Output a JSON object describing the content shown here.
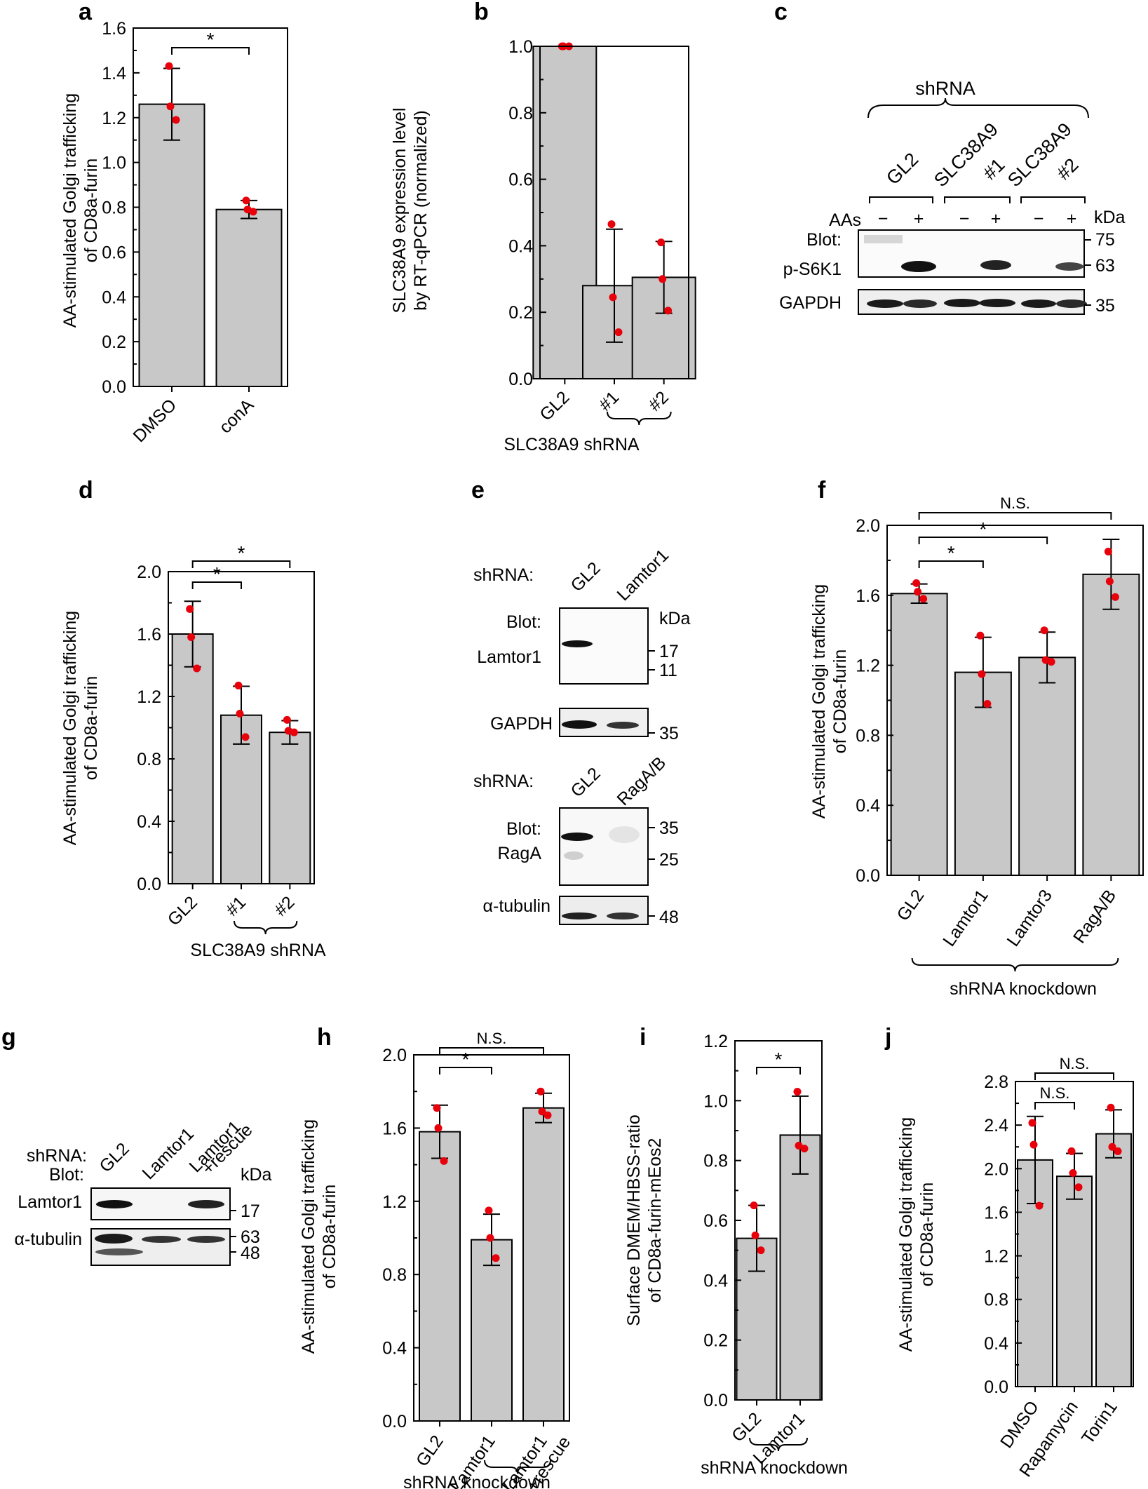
{
  "figure": {
    "background": "#ffffff",
    "bar_color": "#c8c8c8",
    "dot_color": "#e8000b"
  },
  "chart_data": [
    {
      "id": "a",
      "type": "bar",
      "panel_letter": "a",
      "categories": [
        "DMSO",
        "conA"
      ],
      "values": [
        1.26,
        0.79
      ],
      "errors": [
        0.16,
        0.04
      ],
      "points": [
        [
          1.43,
          1.25,
          1.19
        ],
        [
          0.83,
          0.79,
          0.78
        ]
      ],
      "ylabel": [
        "AA-stimulated Golgi trafficking",
        "of CD8a-furin"
      ],
      "ylim": [
        0,
        1.6
      ],
      "yticks": [
        0.0,
        0.2,
        0.4,
        0.6,
        0.8,
        1.0,
        1.2,
        1.4,
        1.6
      ],
      "ytick_labels": [
        "0.0",
        "0.2",
        "0.4",
        "0.6",
        "0.8",
        "1.0",
        "1.2",
        "1.4",
        "1.6"
      ],
      "brackets": [
        {
          "from": 0,
          "to": 1,
          "label": "*",
          "level": 0
        }
      ],
      "group_bracket": null
    },
    {
      "id": "b",
      "type": "bar",
      "panel_letter": "b",
      "categories": [
        "GL2",
        "#1",
        "#2"
      ],
      "values": [
        1.0,
        0.28,
        0.305
      ],
      "errors": [
        0.0,
        0.17,
        0.108
      ],
      "points": [
        [
          1.0,
          1.0,
          1.0
        ],
        [
          0.465,
          0.245,
          0.14
        ],
        [
          0.41,
          0.3,
          0.205
        ]
      ],
      "ylabel": [
        "SLC38A9 expression level",
        "by RT-qPCR (normalized)"
      ],
      "ylim": [
        0,
        1.0
      ],
      "yticks": [
        0.0,
        0.2,
        0.4,
        0.6,
        0.8,
        1.0
      ],
      "ytick_labels": [
        "0.0",
        "0.2",
        "0.4",
        "0.6",
        "0.8",
        "1.0"
      ],
      "brackets": [],
      "group_bracket": {
        "from": 1,
        "to": 2,
        "label": "SLC38A9 shRNA"
      }
    },
    {
      "id": "d",
      "type": "bar",
      "panel_letter": "d",
      "categories": [
        "GL2",
        "#1",
        "#2"
      ],
      "values": [
        1.6,
        1.08,
        0.97
      ],
      "errors": [
        0.21,
        0.185,
        0.075
      ],
      "points": [
        [
          1.76,
          1.58,
          1.38
        ],
        [
          1.27,
          1.09,
          0.94
        ],
        [
          1.05,
          0.98,
          0.97
        ]
      ],
      "ylabel": [
        "AA-stimulated Golgi trafficking",
        "of CD8a-furin"
      ],
      "ylim": [
        0,
        2.0
      ],
      "yticks": [
        0.0,
        0.4,
        0.8,
        1.2,
        1.6,
        2.0
      ],
      "ytick_labels": [
        "0.0",
        "0.4",
        "0.8",
        "1.2",
        "1.6",
        "2.0"
      ],
      "brackets": [
        {
          "from": 0,
          "to": 1,
          "label": "*",
          "level": 0
        },
        {
          "from": 0,
          "to": 2,
          "label": "*",
          "level": 1
        }
      ],
      "group_bracket": {
        "from": 1,
        "to": 2,
        "label": "SLC38A9 shRNA"
      }
    },
    {
      "id": "f",
      "type": "bar",
      "panel_letter": "f",
      "categories": [
        "GL2",
        "Lamtor1",
        "Lamtor3",
        "RagA/B"
      ],
      "values": [
        1.61,
        1.16,
        1.245,
        1.72
      ],
      "errors": [
        0.055,
        0.2,
        0.145,
        0.2
      ],
      "points": [
        [
          1.67,
          1.62,
          1.58
        ],
        [
          1.37,
          1.15,
          0.98
        ],
        [
          1.4,
          1.23,
          1.22
        ],
        [
          1.85,
          1.68,
          1.59
        ]
      ],
      "ylabel": [
        "AA-stimulated Golgi trafficking",
        "of CD8a-furin"
      ],
      "ylim": [
        0,
        2.0
      ],
      "yticks": [
        0.0,
        0.4,
        0.8,
        1.2,
        1.6,
        2.0
      ],
      "ytick_labels": [
        "0.0",
        "0.4",
        "0.8",
        "1.2",
        "1.6",
        "2.0"
      ],
      "brackets": [
        {
          "from": 0,
          "to": 1,
          "label": "*",
          "level": 0
        },
        {
          "from": 0,
          "to": 2,
          "label": "*",
          "level": 1
        },
        {
          "from": 0,
          "to": 3,
          "label": "N.S.",
          "level": 2
        }
      ],
      "group_bracket": {
        "from": 0,
        "to": 3,
        "label": "shRNA knockdown"
      }
    },
    {
      "id": "h",
      "type": "bar",
      "panel_letter": "h",
      "categories": [
        "GL2",
        "Lamtor1",
        "Lamtor1\n+rescue"
      ],
      "values": [
        1.58,
        0.99,
        1.71
      ],
      "errors": [
        0.145,
        0.14,
        0.08
      ],
      "points": [
        [
          1.71,
          1.6,
          1.42
        ],
        [
          1.15,
          1.0,
          0.89
        ],
        [
          1.8,
          1.69,
          1.67
        ]
      ],
      "ylabel": [
        "AA-stimulated Golgi trafficking",
        "of CD8a-furin"
      ],
      "ylim": [
        0,
        2.0
      ],
      "yticks": [
        0.0,
        0.4,
        0.8,
        1.2,
        1.6,
        2.0
      ],
      "ytick_labels": [
        "0.0",
        "0.4",
        "0.8",
        "1.2",
        "1.6",
        "2.0"
      ],
      "brackets": [
        {
          "from": 0,
          "to": 1,
          "label": "*",
          "level": 0
        },
        {
          "from": 0,
          "to": 2,
          "label": "N.S.",
          "level": 1
        }
      ],
      "group_bracket": {
        "from": 1,
        "to": 2,
        "label": "shRNA knockdown"
      }
    },
    {
      "id": "i",
      "type": "bar",
      "panel_letter": "i",
      "categories": [
        "GL2",
        "Lamtor1"
      ],
      "values": [
        0.54,
        0.885
      ],
      "errors": [
        0.11,
        0.13
      ],
      "points": [
        [
          0.65,
          0.55,
          0.5
        ],
        [
          1.03,
          0.85,
          0.84
        ]
      ],
      "ylabel": [
        "Surface DMEM/HBSS-ratio",
        "of CD8a-furin-mEos2"
      ],
      "ylim": [
        0,
        1.2
      ],
      "yticks": [
        0.0,
        0.2,
        0.4,
        0.6,
        0.8,
        1.0,
        1.2
      ],
      "ytick_labels": [
        "0.0",
        "0.2",
        "0.4",
        "0.6",
        "0.8",
        "1.0",
        "1.2"
      ],
      "brackets": [
        {
          "from": 0,
          "to": 1,
          "label": "*",
          "level": 0
        }
      ],
      "group_bracket": {
        "from": 0,
        "to": 1,
        "label": "shRNA knockdown"
      }
    },
    {
      "id": "j",
      "type": "bar",
      "panel_letter": "j",
      "categories": [
        "DMSO",
        "Rapamycin",
        "Torin1"
      ],
      "values": [
        2.08,
        1.93,
        2.32
      ],
      "errors": [
        0.4,
        0.21,
        0.22
      ],
      "points": [
        [
          2.42,
          2.22,
          1.66
        ],
        [
          2.16,
          1.96,
          1.83
        ],
        [
          2.56,
          2.2,
          2.16
        ]
      ],
      "ylabel": [
        "AA-stimulated Golgi trafficking",
        "of CD8a-furin"
      ],
      "ylim": [
        0,
        2.8
      ],
      "yticks": [
        0.0,
        0.4,
        0.8,
        1.2,
        1.6,
        2.0,
        2.4,
        2.8
      ],
      "ytick_labels": [
        "0.0",
        "0.4",
        "0.8",
        "1.2",
        "1.6",
        "2.0",
        "2.4",
        "2.8"
      ],
      "brackets": [
        {
          "from": 0,
          "to": 1,
          "label": "N.S.",
          "level": 0
        },
        {
          "from": 0,
          "to": 2,
          "label": "N.S.",
          "level": 1
        }
      ],
      "group_bracket": null
    }
  ],
  "blots": {
    "c": {
      "letter": "c",
      "header": "shRNA",
      "groups": [
        "GL2",
        "SLC38A9",
        "#1",
        "SLC38A9",
        "#2"
      ],
      "aas_label": "AAs",
      "lane_signs": [
        "−",
        "+",
        "−",
        "+",
        "−",
        "+"
      ],
      "kda_label": "kDa",
      "blot_label": "Blot:",
      "rows": [
        "p-S6K1",
        "GAPDH"
      ],
      "markers": [
        "75",
        "63",
        "35"
      ]
    },
    "e": {
      "letter": "e",
      "shrna_label_1": "shRNA:",
      "lanes_1": [
        "GL2",
        "Lamtor1"
      ],
      "kda_label": "kDa",
      "blot_label": "Blot:",
      "row_1": "Lamtor1",
      "markers_1": [
        "17",
        "11"
      ],
      "row_2": "GAPDH",
      "marker_2": "35",
      "shrna_label_2": "shRNA:",
      "lanes_2": [
        "GL2",
        "RagA/B"
      ],
      "blot_label_2": "Blot:",
      "row_3": "RagA",
      "markers_3": [
        "35",
        "25"
      ],
      "row_4": "α-tubulin",
      "marker_4": "48"
    },
    "g": {
      "letter": "g",
      "shrna_label": "shRNA:",
      "blot_label": "Blot:",
      "lanes": [
        "GL2",
        "Lamtor1",
        "Lamtor1",
        "+rescue"
      ],
      "kda_label": "kDa",
      "row_1": "Lamtor1",
      "marker_1": "17",
      "row_2": "α-tubulin",
      "markers_2": [
        "63",
        "48"
      ]
    }
  }
}
